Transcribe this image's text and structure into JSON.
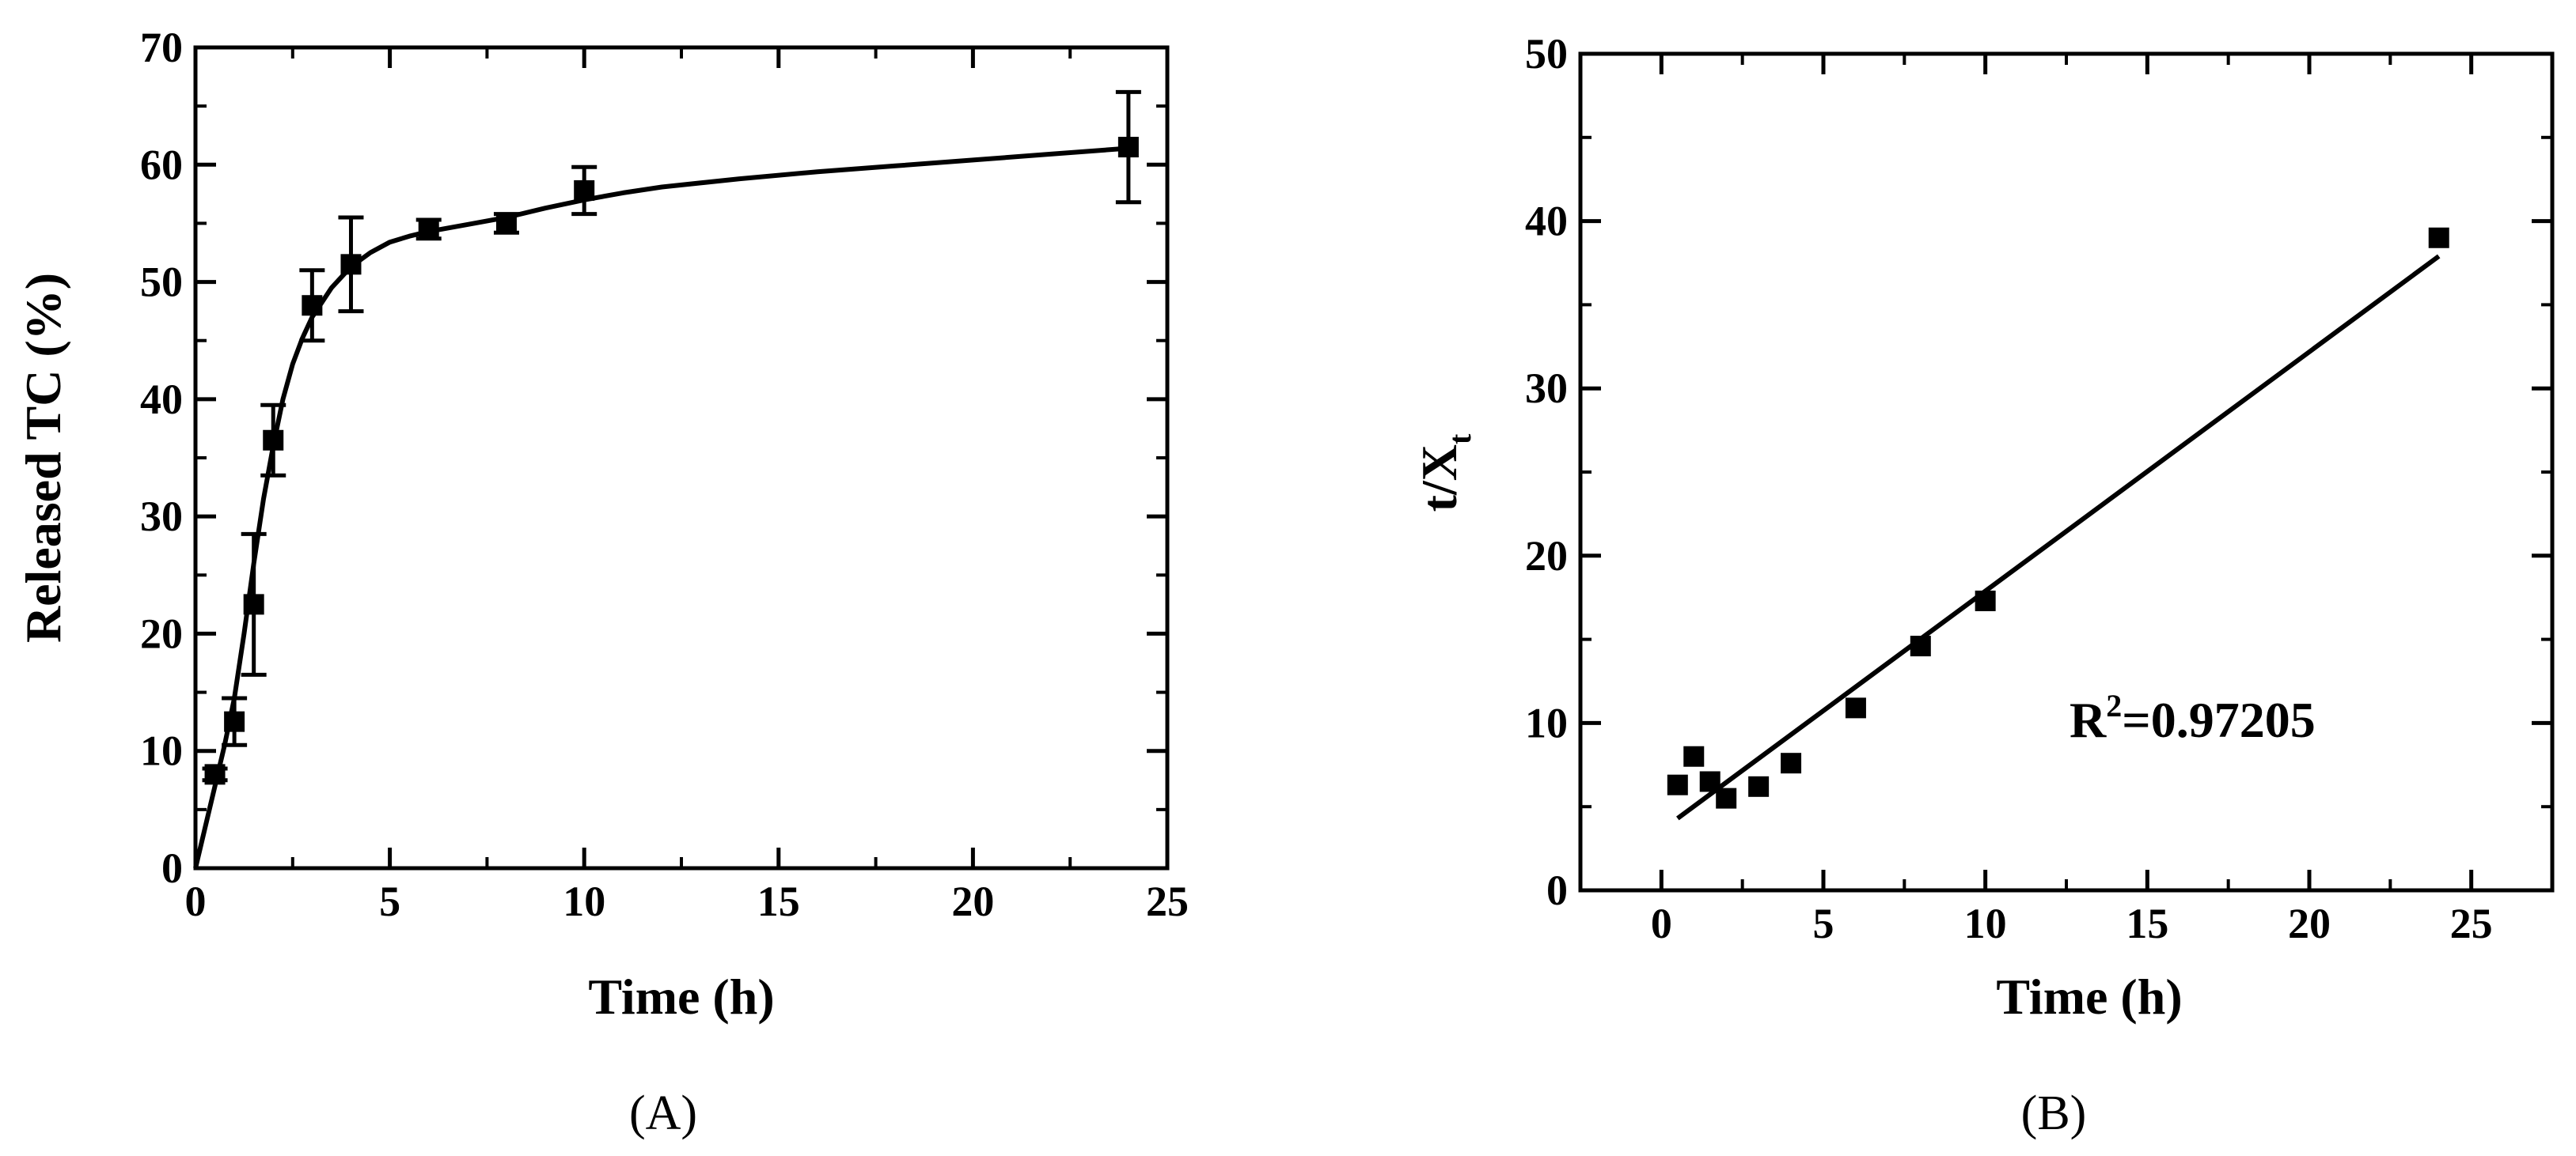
{
  "chart_data": [
    {
      "type": "scatter",
      "panel_label": "(A)",
      "xlabel": "Time (h)",
      "ylabel": "Released TC (%)",
      "xlim": [
        0,
        25
      ],
      "ylim": [
        0,
        70
      ],
      "xticks": [
        0,
        5,
        10,
        15,
        20,
        25
      ],
      "yticks": [
        0,
        10,
        20,
        30,
        40,
        50,
        60,
        70
      ],
      "grid": false,
      "series": [
        {
          "x": [
            0.5,
            1,
            1.5,
            2,
            3,
            4,
            6,
            8,
            10,
            24
          ],
          "y": [
            8,
            12.5,
            22.5,
            36.5,
            48,
            51.5,
            54.5,
            55,
            57.8,
            61.5
          ],
          "error": [
            0.5,
            2,
            6,
            3,
            3,
            4,
            0.8,
            0.8,
            2,
            4.7
          ]
        }
      ],
      "fit_curve": {
        "x": [
          0,
          0.25,
          0.5,
          0.75,
          1,
          1.25,
          1.5,
          1.75,
          2,
          2.25,
          2.5,
          2.75,
          3,
          3.5,
          4,
          4.5,
          5,
          5.5,
          6,
          7,
          8,
          9,
          10,
          11,
          12,
          14,
          16,
          18,
          20,
          22,
          24
        ],
        "y": [
          0,
          3.5,
          7,
          10.5,
          14.5,
          20,
          26,
          31.5,
          36,
          40,
          43,
          45.2,
          47,
          49.5,
          51.3,
          52.5,
          53.4,
          53.9,
          54.3,
          54.9,
          55.5,
          56.3,
          57,
          57.6,
          58.1,
          58.8,
          59.4,
          59.9,
          60.4,
          60.9,
          61.4
        ]
      }
    },
    {
      "type": "scatter",
      "panel_label": "(B)",
      "xlabel": "Time (h)",
      "ylabel_main": "t/X",
      "ylabel_sub": "t",
      "xlim": [
        -2.5,
        27.5
      ],
      "ylim": [
        0,
        50
      ],
      "xticks": [
        0,
        5,
        10,
        15,
        20,
        25
      ],
      "yticks": [
        0,
        10,
        20,
        30,
        40,
        50
      ],
      "grid": false,
      "annotation": {
        "main": "R",
        "sup": "2",
        "rest": "=0.97205"
      },
      "series": [
        {
          "x": [
            0.5,
            1,
            1.5,
            2,
            3,
            4,
            6,
            8,
            10,
            24
          ],
          "y": [
            6.3,
            8,
            6.5,
            5.5,
            6.2,
            7.6,
            10.9,
            14.6,
            17.3,
            39
          ]
        }
      ],
      "fit_line": {
        "x": [
          0.5,
          24
        ],
        "y": [
          4.3,
          37.9
        ]
      }
    }
  ]
}
